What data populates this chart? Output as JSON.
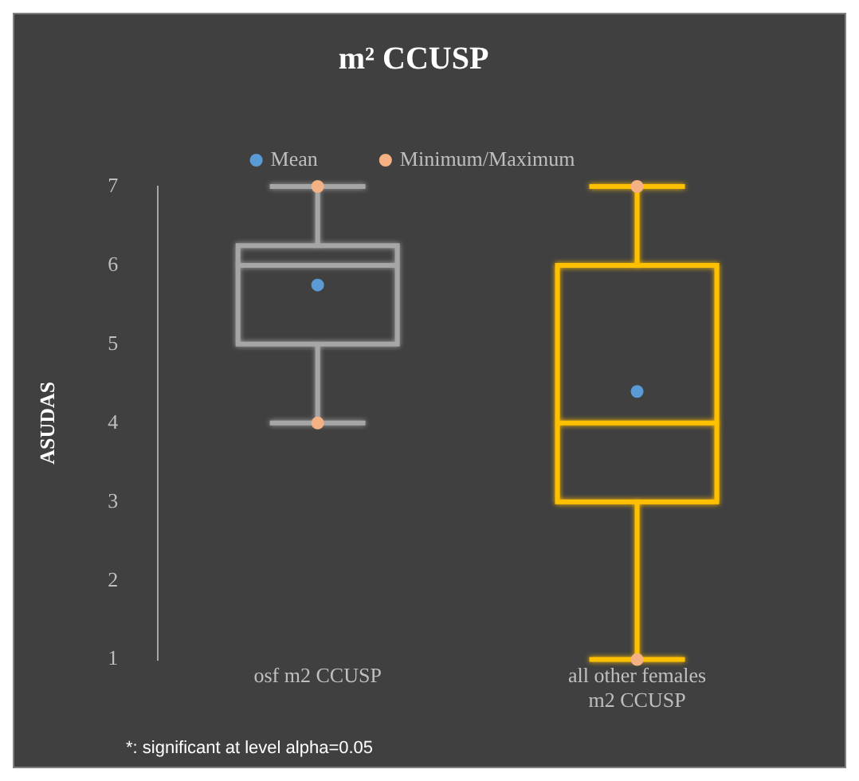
{
  "chart_data": {
    "type": "box",
    "title": "m² CCUSP",
    "ylabel": "ASUDAS",
    "categories": [
      "osf m2 CCUSP",
      "all other females m2 CCUSP"
    ],
    "boxes": [
      {
        "low": 4,
        "q1": 5,
        "median": 6,
        "q3": 6.25,
        "high": 7
      },
      {
        "low": 1,
        "q1": 3,
        "median": 4,
        "q3": 6,
        "high": 7
      }
    ],
    "colors": [
      "#a6a6a6",
      "#ffc000"
    ],
    "series": [
      {
        "type": "scatter",
        "name": "Mean",
        "color": "#5b9bd5",
        "x": [
          "osf m2 CCUSP",
          "all other females m2 CCUSP"
        ],
        "values": [
          5.75,
          4.4
        ]
      },
      {
        "type": "scatter",
        "name": "Minimum/Maximum",
        "color": "#f4b183",
        "x": [
          "osf m2 CCUSP",
          "osf m2 CCUSP",
          "all other females m2 CCUSP",
          "all other females m2 CCUSP"
        ],
        "values": [
          4,
          7,
          1,
          7
        ]
      }
    ],
    "ylim": [
      1,
      7
    ],
    "yticks": [
      1,
      2,
      3,
      4,
      5,
      6,
      7
    ],
    "grid": false,
    "legend": "top",
    "marker": "circle",
    "annotations": [
      "*: significant at level alpha=0.05"
    ]
  }
}
